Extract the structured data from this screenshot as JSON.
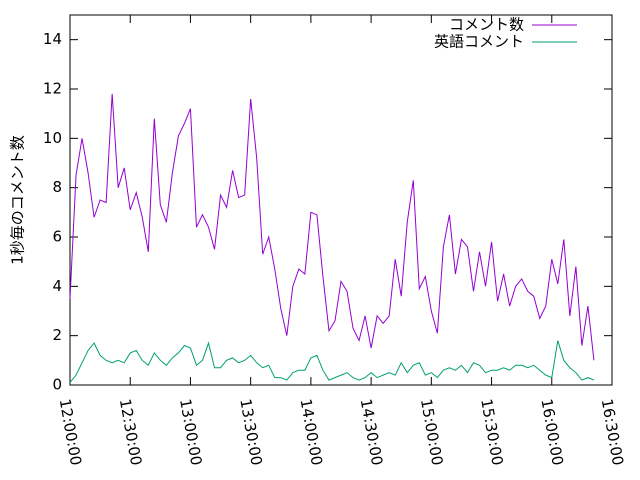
{
  "chart_data": {
    "type": "line",
    "y_label": "1秒毎のコメント数",
    "x": [
      "12:00:00",
      "12:03:00",
      "12:06:00",
      "12:09:00",
      "12:12:00",
      "12:15:00",
      "12:18:00",
      "12:21:00",
      "12:24:00",
      "12:27:00",
      "12:30:00",
      "12:33:00",
      "12:36:00",
      "12:39:00",
      "12:42:00",
      "12:45:00",
      "12:48:00",
      "12:51:00",
      "12:54:00",
      "12:57:00",
      "13:00:00",
      "13:03:00",
      "13:06:00",
      "13:09:00",
      "13:12:00",
      "13:15:00",
      "13:18:00",
      "13:21:00",
      "13:24:00",
      "13:27:00",
      "13:30:00",
      "13:33:00",
      "13:36:00",
      "13:39:00",
      "13:42:00",
      "13:45:00",
      "13:48:00",
      "13:51:00",
      "13:54:00",
      "13:57:00",
      "14:00:00",
      "14:03:00",
      "14:06:00",
      "14:09:00",
      "14:12:00",
      "14:15:00",
      "14:18:00",
      "14:21:00",
      "14:24:00",
      "14:27:00",
      "14:30:00",
      "14:33:00",
      "14:36:00",
      "14:39:00",
      "14:42:00",
      "14:45:00",
      "14:48:00",
      "14:51:00",
      "14:54:00",
      "14:57:00",
      "15:00:00",
      "15:03:00",
      "15:06:00",
      "15:09:00",
      "15:12:00",
      "15:15:00",
      "15:18:00",
      "15:21:00",
      "15:24:00",
      "15:27:00",
      "15:30:00",
      "15:33:00",
      "15:36:00",
      "15:39:00",
      "15:42:00",
      "15:45:00",
      "15:48:00",
      "15:51:00",
      "15:54:00",
      "15:57:00",
      "16:00:00",
      "16:03:00",
      "16:06:00",
      "16:09:00",
      "16:12:00",
      "16:15:00",
      "16:18:00",
      "16:21:00"
    ],
    "series": [
      {
        "name": "コメント数",
        "color": "#9400d3",
        "values": [
          3.5,
          8.5,
          10,
          8.6,
          6.8,
          7.5,
          7.4,
          11.8,
          8.0,
          8.8,
          7.1,
          7.8,
          6.8,
          5.4,
          10.8,
          7.3,
          6.6,
          8.6,
          10.1,
          10.6,
          11.2,
          6.4,
          6.9,
          6.4,
          5.5,
          7.7,
          7.2,
          8.7,
          7.6,
          7.7,
          11.6,
          9.2,
          5.3,
          6.0,
          4.7,
          3.1,
          2.0,
          4.0,
          4.7,
          4.5,
          7.0,
          6.9,
          4.4,
          2.2,
          2.6,
          4.2,
          3.8,
          2.3,
          1.8,
          2.8,
          1.5,
          2.8,
          2.5,
          2.8,
          5.1,
          3.6,
          6.6,
          8.3,
          3.9,
          4.4,
          3.0,
          2.1,
          5.6,
          6.9,
          4.5,
          5.9,
          5.6,
          3.8,
          5.4,
          4.0,
          5.8,
          3.4,
          4.5,
          3.2,
          4.0,
          4.3,
          3.8,
          3.6,
          2.7,
          3.2,
          5.1,
          4.1,
          5.9,
          2.8,
          4.8,
          1.6,
          3.2,
          1.0
        ]
      },
      {
        "name": "英語コメント",
        "color": "#009e73",
        "values": [
          0.1,
          0.4,
          0.9,
          1.4,
          1.7,
          1.2,
          1.0,
          0.9,
          1.0,
          0.9,
          1.3,
          1.4,
          1.0,
          0.8,
          1.3,
          1.0,
          0.8,
          1.1,
          1.3,
          1.6,
          1.5,
          0.8,
          1.0,
          1.7,
          0.7,
          0.7,
          1.0,
          1.1,
          0.9,
          1.0,
          1.2,
          0.9,
          0.7,
          0.8,
          0.3,
          0.3,
          0.2,
          0.5,
          0.6,
          0.6,
          1.1,
          1.2,
          0.6,
          0.2,
          0.3,
          0.4,
          0.5,
          0.3,
          0.2,
          0.3,
          0.5,
          0.3,
          0.4,
          0.5,
          0.4,
          0.9,
          0.5,
          0.8,
          0.9,
          0.4,
          0.5,
          0.3,
          0.6,
          0.7,
          0.6,
          0.8,
          0.5,
          0.9,
          0.8,
          0.5,
          0.6,
          0.6,
          0.7,
          0.6,
          0.8,
          0.8,
          0.7,
          0.8,
          0.6,
          0.4,
          0.3,
          1.8,
          1.0,
          0.7,
          0.5,
          0.2,
          0.3,
          0.2
        ]
      }
    ],
    "xlim": [
      "12:00:00",
      "16:30:00"
    ],
    "xticks": [
      "12:00:00",
      "12:30:00",
      "13:00:00",
      "13:30:00",
      "14:00:00",
      "14:30:00",
      "15:00:00",
      "15:30:00",
      "16:00:00",
      "16:30:00"
    ],
    "ylim": [
      0,
      15
    ],
    "yticks": [
      0,
      2,
      4,
      6,
      8,
      10,
      12,
      14
    ],
    "legend": "top-right"
  }
}
